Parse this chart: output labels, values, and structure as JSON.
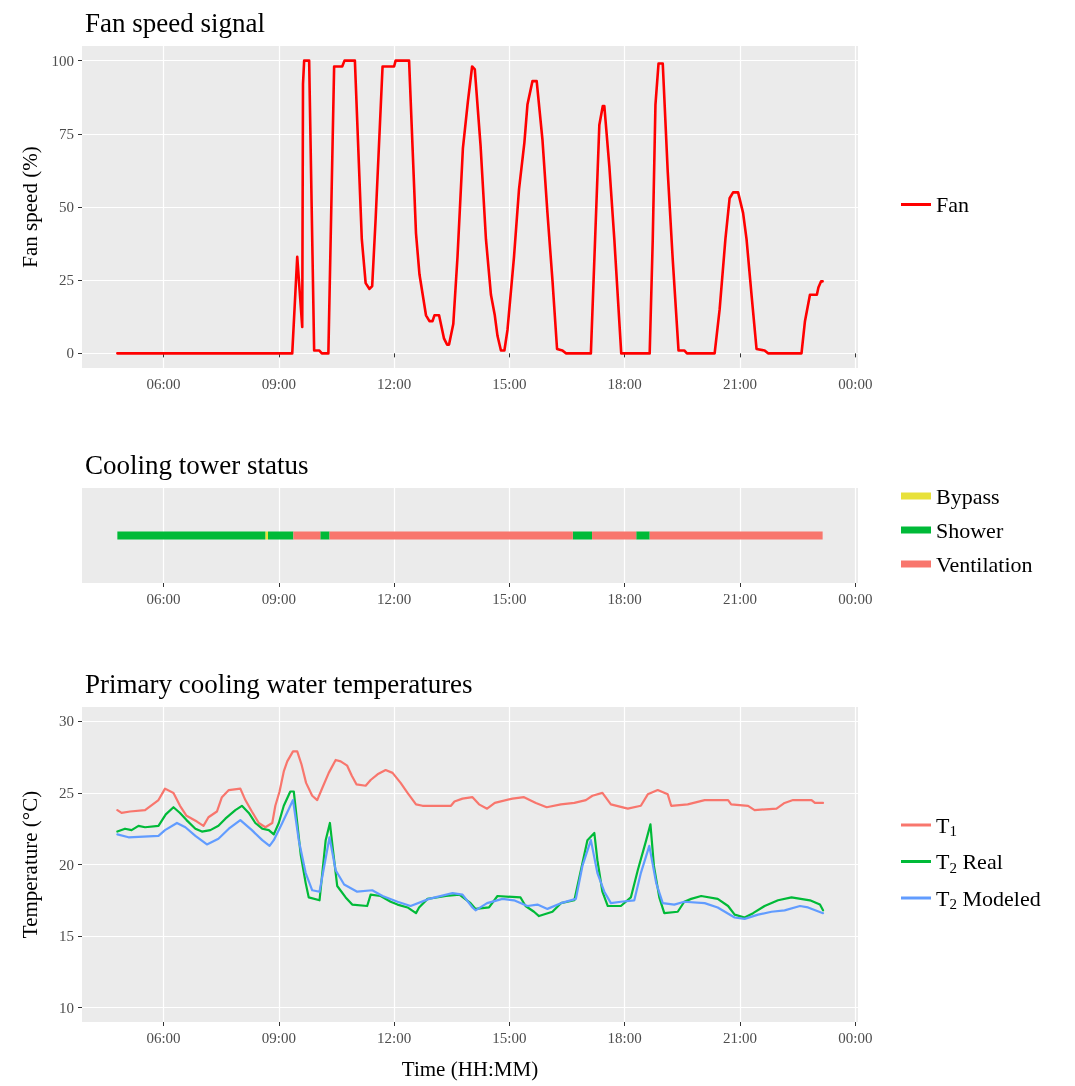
{
  "chart_data": [
    {
      "type": "line",
      "title": "Fan speed signal",
      "ylabel": "Fan speed (%)",
      "xlim": [
        3.88,
        24.07
      ],
      "xticks": [
        {
          "value": 6,
          "label": "06:00"
        },
        {
          "value": 9,
          "label": "09:00"
        },
        {
          "value": 12,
          "label": "12:00"
        },
        {
          "value": 15,
          "label": "15:00"
        },
        {
          "value": 18,
          "label": "18:00"
        },
        {
          "value": 21,
          "label": "21:00"
        },
        {
          "value": 24,
          "label": "00:00"
        }
      ],
      "ylim": [
        -5,
        105
      ],
      "yticks": [
        0,
        25,
        50,
        75,
        100
      ],
      "grid": true,
      "legend": "right",
      "series": [
        {
          "name": "Fan",
          "color": "#ff0000",
          "x": [
            4.8,
            9.35,
            9.48,
            9.61,
            9.63,
            9.66,
            9.79,
            9.92,
            10.05,
            10.12,
            10.29,
            10.44,
            10.65,
            10.71,
            10.98,
            11.16,
            11.26,
            11.36,
            11.43,
            11.52,
            11.7,
            12.0,
            12.04,
            12.39,
            12.57,
            12.66,
            12.83,
            12.92,
            13.0,
            13.05,
            13.17,
            13.3,
            13.38,
            13.43,
            13.54,
            13.65,
            13.79,
            13.92,
            14.03,
            14.1,
            14.25,
            14.39,
            14.52,
            14.62,
            14.69,
            14.78,
            14.87,
            14.95,
            15.12,
            15.25,
            15.39,
            15.47,
            15.6,
            15.71,
            15.86,
            15.99,
            16.12,
            16.24,
            16.38,
            16.47,
            17.12,
            17.23,
            17.34,
            17.43,
            17.47,
            17.6,
            17.73,
            17.91,
            18.65,
            18.73,
            18.8,
            18.88,
            18.99,
            19.12,
            19.25,
            19.4,
            19.55,
            19.62,
            20.34,
            20.47,
            20.62,
            20.73,
            20.82,
            20.95,
            21.08,
            21.17,
            21.3,
            21.43,
            21.64,
            21.73,
            22.6,
            22.69,
            22.82,
            23.0,
            23.04,
            23.11,
            23.15
          ],
          "values": [
            0,
            0,
            33,
            9,
            92,
            100,
            100,
            1,
            1,
            0,
            0,
            98,
            98,
            100,
            100,
            39,
            24,
            22,
            23,
            46,
            98,
            98,
            100,
            100,
            41,
            27,
            13,
            11,
            11,
            13,
            13,
            5,
            3,
            3,
            10,
            33,
            70,
            86,
            98,
            97,
            71,
            39,
            20,
            13,
            6,
            1,
            1,
            8,
            33,
            56,
            72,
            85,
            93,
            93,
            73,
            48,
            25,
            1.5,
            1,
            0,
            0,
            39,
            78,
            84.5,
            84.5,
            64,
            39,
            0,
            0,
            39,
            85,
            99,
            99,
            62,
            32,
            1,
            1,
            0,
            0,
            15,
            39,
            53,
            55,
            55,
            48,
            39,
            20,
            1.5,
            1,
            0,
            0,
            11,
            20,
            20,
            22.5,
            24.6,
            24.6
          ]
        }
      ]
    },
    {
      "type": "bar",
      "title": "Cooling tower status",
      "orientation": "horizontal",
      "categories": [
        null
      ],
      "xlim": [
        3.88,
        24.07
      ],
      "xticks": [
        {
          "value": 6,
          "label": "06:00"
        },
        {
          "value": 9,
          "label": "09:00"
        },
        {
          "value": 12,
          "label": "12:00"
        },
        {
          "value": 15,
          "label": "15:00"
        },
        {
          "value": 18,
          "label": "18:00"
        },
        {
          "value": 21,
          "label": "21:00"
        },
        {
          "value": 24,
          "label": "00:00"
        }
      ],
      "grid": "x",
      "legend": "right",
      "series": [
        {
          "name": "Bypass",
          "color": "#e8e13a",
          "base": [
            8.65
          ],
          "values": [
            0.07
          ]
        },
        {
          "name": "Shower",
          "color": "#00ba38",
          "base": [
            4.8
          ],
          "values": [
            3.85
          ]
        },
        {
          "color": "#00ba38",
          "base": [
            8.72
          ],
          "values": [
            0.66
          ]
        },
        {
          "color": "#00ba38",
          "base": [
            10.08
          ],
          "values": [
            0.24
          ]
        },
        {
          "color": "#00ba38",
          "base": [
            16.65
          ],
          "values": [
            0.5
          ]
        },
        {
          "color": "#00ba38",
          "base": [
            18.3
          ],
          "values": [
            0.35
          ]
        },
        {
          "name": "Ventilation",
          "color": "#f8766d",
          "base": [
            9.38
          ],
          "values": [
            0.7
          ]
        },
        {
          "color": "#f8766d",
          "base": [
            10.32
          ],
          "values": [
            6.33
          ]
        },
        {
          "color": "#f8766d",
          "base": [
            17.15
          ],
          "values": [
            1.15
          ]
        },
        {
          "color": "#f8766d",
          "base": [
            18.65
          ],
          "values": [
            4.5
          ]
        }
      ]
    },
    {
      "type": "line",
      "title": "Primary cooling water temperatures",
      "xlabel": "Time (HH:MM)",
      "ylabel": "Temperature (°C)",
      "xlim": [
        3.88,
        24.07
      ],
      "xticks": [
        {
          "value": 6,
          "label": "06:00"
        },
        {
          "value": 9,
          "label": "09:00"
        },
        {
          "value": 12,
          "label": "12:00"
        },
        {
          "value": 15,
          "label": "15:00"
        },
        {
          "value": 18,
          "label": "18:00"
        },
        {
          "value": 21,
          "label": "21:00"
        },
        {
          "value": 24,
          "label": "00:00"
        }
      ],
      "ylim": [
        9,
        31
      ],
      "yticks": [
        10,
        15,
        20,
        25,
        30
      ],
      "grid": true,
      "legend": "right",
      "series": [
        {
          "name": "T$_{1}$",
          "color": "#f8766d",
          "x": [
            4.8,
            4.91,
            5.13,
            5.52,
            5.87,
            6.04,
            6.26,
            6.43,
            6.6,
            6.87,
            7.04,
            7.17,
            7.39,
            7.52,
            7.7,
            8.0,
            8.13,
            8.3,
            8.48,
            8.65,
            8.83,
            8.91,
            9.02,
            9.13,
            9.22,
            9.37,
            9.48,
            9.59,
            9.71,
            9.87,
            10.0,
            10.11,
            10.3,
            10.48,
            10.61,
            10.78,
            10.9,
            11.02,
            11.26,
            11.39,
            11.57,
            11.78,
            11.96,
            12.17,
            12.35,
            12.57,
            12.74,
            13.48,
            13.57,
            13.78,
            14.04,
            14.21,
            14.42,
            14.62,
            15.08,
            15.38,
            15.69,
            15.97,
            16.34,
            16.69,
            16.99,
            17.16,
            17.42,
            17.64,
            18.08,
            18.42,
            18.6,
            18.86,
            19.12,
            19.21,
            19.64,
            20.08,
            20.69,
            20.77,
            21.21,
            21.38,
            21.95,
            22.16,
            22.38,
            22.86,
            22.95,
            23.16
          ],
          "values": [
            23.8,
            23.6,
            23.7,
            23.8,
            24.5,
            25.3,
            25.0,
            24.1,
            23.4,
            23.0,
            22.7,
            23.3,
            23.7,
            24.7,
            25.2,
            25.3,
            24.5,
            23.7,
            22.9,
            22.6,
            22.9,
            24.1,
            25.1,
            26.5,
            27.2,
            27.9,
            27.9,
            27.0,
            25.7,
            24.8,
            24.5,
            25.2,
            26.4,
            27.3,
            27.2,
            26.9,
            26.2,
            25.6,
            25.5,
            25.9,
            26.3,
            26.6,
            26.4,
            25.7,
            25.0,
            24.2,
            24.1,
            24.1,
            24.4,
            24.6,
            24.7,
            24.2,
            23.9,
            24.3,
            24.6,
            24.7,
            24.3,
            24.0,
            24.2,
            24.3,
            24.5,
            24.8,
            25.0,
            24.2,
            23.9,
            24.1,
            24.9,
            25.2,
            24.9,
            24.1,
            24.2,
            24.5,
            24.5,
            24.2,
            24.1,
            23.8,
            23.9,
            24.3,
            24.5,
            24.5,
            24.3,
            24.3
          ]
        },
        {
          "name": "T$_{2}$ Real",
          "color": "#00ba38",
          "x": [
            4.8,
            5.0,
            5.17,
            5.35,
            5.52,
            5.87,
            6.06,
            6.26,
            6.43,
            6.6,
            6.83,
            7.0,
            7.22,
            7.43,
            7.61,
            7.87,
            8.04,
            8.22,
            8.39,
            8.57,
            8.74,
            8.87,
            9.0,
            9.13,
            9.3,
            9.39,
            9.48,
            9.57,
            9.7,
            9.78,
            10.06,
            10.22,
            10.33,
            10.41,
            10.52,
            10.74,
            10.91,
            11.3,
            11.39,
            11.65,
            11.91,
            12.09,
            12.35,
            12.57,
            12.65,
            12.87,
            13.35,
            13.7,
            13.99,
            14.12,
            14.47,
            14.69,
            15.29,
            15.42,
            15.64,
            15.77,
            16.12,
            16.34,
            16.69,
            16.86,
            17.03,
            17.21,
            17.29,
            17.42,
            17.56,
            17.9,
            18.16,
            18.34,
            18.56,
            18.67,
            18.76,
            18.9,
            19.03,
            19.38,
            19.55,
            19.73,
            19.99,
            20.42,
            20.69,
            20.86,
            21.12,
            21.34,
            21.64,
            21.99,
            22.34,
            22.82,
            23.08,
            23.16
          ],
          "values": [
            22.3,
            22.5,
            22.4,
            22.7,
            22.6,
            22.7,
            23.5,
            24.0,
            23.6,
            23.1,
            22.5,
            22.3,
            22.4,
            22.7,
            23.2,
            23.8,
            24.1,
            23.6,
            22.9,
            22.5,
            22.4,
            22.1,
            22.9,
            24.1,
            25.1,
            25.1,
            22.9,
            20.7,
            18.7,
            17.7,
            17.5,
            21.7,
            22.9,
            21.0,
            18.5,
            17.7,
            17.2,
            17.1,
            17.9,
            17.8,
            17.4,
            17.2,
            17.0,
            16.6,
            17.0,
            17.6,
            17.8,
            17.9,
            17.3,
            16.9,
            17.0,
            17.8,
            17.7,
            17.1,
            16.7,
            16.4,
            16.7,
            17.3,
            17.5,
            19.6,
            21.7,
            22.2,
            20.3,
            18.1,
            17.1,
            17.1,
            17.7,
            19.6,
            21.7,
            22.8,
            19.9,
            17.7,
            16.6,
            16.7,
            17.4,
            17.6,
            17.8,
            17.6,
            17.1,
            16.5,
            16.3,
            16.6,
            17.1,
            17.5,
            17.7,
            17.5,
            17.2,
            16.8
          ]
        },
        {
          "name": "T$_{2}$ Modeled",
          "color": "#619cff",
          "x": [
            4.8,
            5.09,
            5.87,
            6.04,
            6.35,
            6.57,
            6.83,
            7.13,
            7.43,
            7.7,
            8.0,
            8.3,
            8.57,
            8.76,
            8.87,
            9.09,
            9.37,
            9.52,
            9.7,
            9.87,
            10.06,
            10.32,
            10.48,
            10.7,
            11.04,
            11.43,
            11.7,
            12.09,
            12.43,
            12.91,
            13.52,
            13.78,
            14.04,
            14.12,
            14.42,
            14.82,
            15.12,
            15.47,
            15.73,
            15.99,
            16.34,
            16.73,
            16.9,
            17.12,
            17.29,
            17.47,
            17.64,
            17.9,
            18.25,
            18.42,
            18.64,
            18.82,
            18.99,
            19.29,
            19.55,
            20.08,
            20.42,
            20.86,
            21.12,
            21.47,
            21.82,
            22.16,
            22.56,
            22.77,
            23.16
          ],
          "values": [
            22.1,
            21.9,
            22.0,
            22.4,
            22.9,
            22.6,
            22.0,
            21.4,
            21.8,
            22.5,
            23.1,
            22.4,
            21.7,
            21.3,
            21.7,
            22.9,
            24.5,
            21.7,
            19.4,
            18.2,
            18.1,
            21.9,
            19.6,
            18.6,
            18.1,
            18.2,
            17.8,
            17.4,
            17.1,
            17.6,
            18.0,
            17.9,
            17.0,
            16.8,
            17.3,
            17.6,
            17.5,
            17.1,
            17.2,
            16.9,
            17.3,
            17.6,
            19.9,
            21.7,
            19.4,
            18.1,
            17.3,
            17.4,
            17.5,
            19.4,
            21.3,
            18.7,
            17.3,
            17.2,
            17.4,
            17.3,
            17.0,
            16.3,
            16.2,
            16.5,
            16.7,
            16.8,
            17.1,
            17.0,
            16.6
          ]
        }
      ]
    }
  ]
}
